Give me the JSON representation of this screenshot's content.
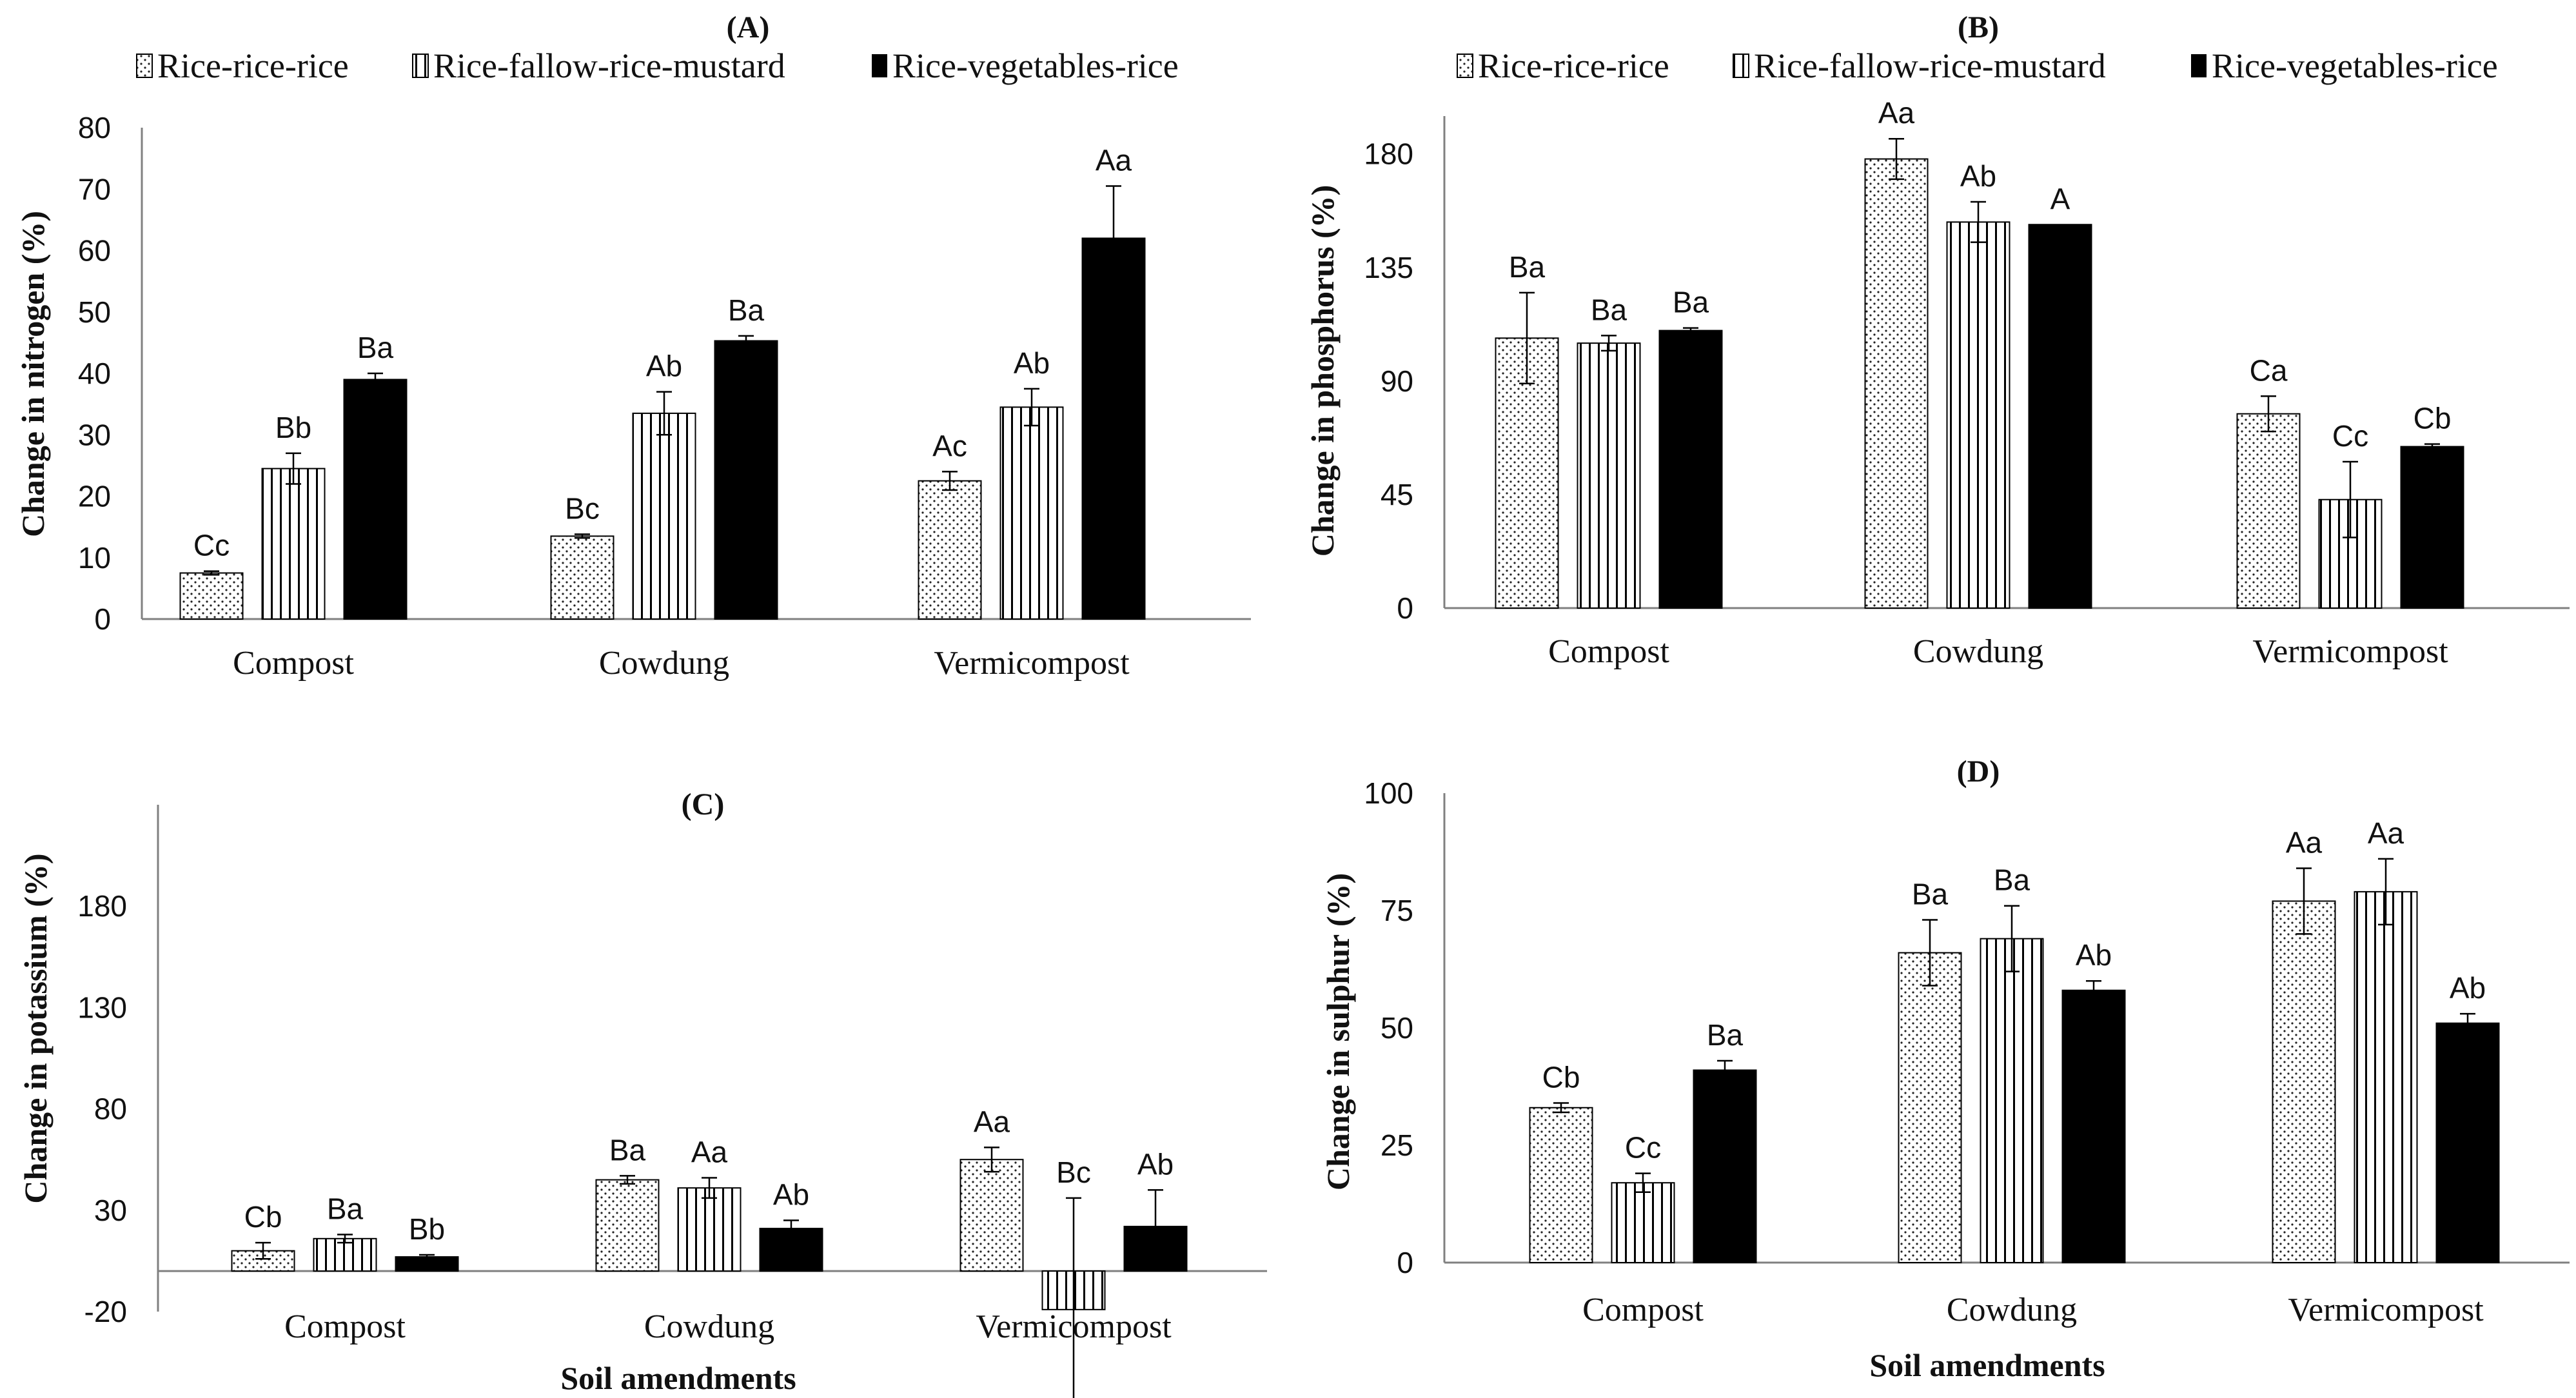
{
  "legend_labels": [
    "Rice-rice-rice",
    "Rice-fallow-rice-mustard",
    "Rice-vegetables-rice"
  ],
  "colors": {
    "axis": "#808080",
    "bar_black": "#000000",
    "ink": "#111111",
    "background": "#ffffff"
  },
  "chart_data": [
    {
      "id": "A",
      "type": "bar",
      "title": "(A)",
      "xlabel": "",
      "ylabel": "Change in nitrogen (%)",
      "ylim": [
        0,
        80
      ],
      "yticks": [
        0,
        10,
        20,
        30,
        40,
        50,
        60,
        70,
        80
      ],
      "grid": false,
      "legend": "top",
      "categories": [
        "Compost",
        "Cowdung",
        "Vermicompost"
      ],
      "series": [
        {
          "name": "Rice-rice-rice",
          "values": [
            7.5,
            13.5,
            22.5
          ],
          "errors": [
            0.3,
            0.3,
            1.5
          ],
          "labels": [
            "Cc",
            "Bc",
            "Ac"
          ]
        },
        {
          "name": "Rice-fallow-rice-mustard",
          "values": [
            24.5,
            33.5,
            34.5
          ],
          "errors": [
            2.5,
            3.5,
            3.0
          ],
          "labels": [
            "Bb",
            "Ab",
            "Ab"
          ]
        },
        {
          "name": "Rice-vegetables-rice",
          "values": [
            39,
            45.3,
            62
          ],
          "errors": [
            1.0,
            0.8,
            8.5
          ],
          "labels": [
            "Ba",
            "Ba",
            "Aa"
          ]
        }
      ]
    },
    {
      "id": "B",
      "type": "bar",
      "title": "(B)",
      "xlabel": "",
      "ylabel": "Change in phosphorus (%)",
      "ylim": [
        0,
        195
      ],
      "yticks": [
        0,
        45,
        90,
        135,
        180
      ],
      "grid": false,
      "legend": "top",
      "categories": [
        "Compost",
        "Cowdung",
        "Vermicompost"
      ],
      "series": [
        {
          "name": "Rice-rice-rice",
          "values": [
            107,
            178,
            77
          ],
          "errors": [
            18,
            8,
            7
          ],
          "labels": [
            "Ba",
            "Aa",
            "Ca"
          ]
        },
        {
          "name": "Rice-fallow-rice-mustard",
          "values": [
            105,
            153,
            43
          ],
          "errors": [
            3,
            8,
            15
          ],
          "labels": [
            "Ba",
            "Ab",
            "Cc"
          ]
        },
        {
          "name": "Rice-vegetables-rice",
          "values": [
            110,
            152,
            64
          ],
          "errors": [
            1,
            0,
            1
          ],
          "labels": [
            "Ba",
            "A",
            "Cb"
          ]
        }
      ]
    },
    {
      "id": "C",
      "type": "bar",
      "title": "(C)",
      "xlabel": "Soil amendments",
      "ylabel": "Change in potassium (%)",
      "ylim": [
        -20,
        230
      ],
      "yticks": [
        -20,
        30,
        80,
        130,
        180
      ],
      "grid": false,
      "legend": "none",
      "categories": [
        "Compost",
        "Cowdung",
        "Vermicompost"
      ],
      "series": [
        {
          "name": "Rice-rice-rice",
          "values": [
            10,
            45,
            55
          ],
          "errors": [
            4,
            2,
            6
          ],
          "labels": [
            "Cb",
            "Ba",
            "Aa"
          ]
        },
        {
          "name": "Rice-fallow-rice-mustard",
          "values": [
            16,
            41,
            -19
          ],
          "errors": [
            2,
            5,
            55
          ],
          "labels": [
            "Ba",
            "Aa",
            "Bc"
          ]
        },
        {
          "name": "Rice-vegetables-rice",
          "values": [
            7,
            21,
            22
          ],
          "errors": [
            1,
            4,
            18
          ],
          "labels": [
            "Bb",
            "Ab",
            "Ab"
          ]
        }
      ]
    },
    {
      "id": "D",
      "type": "bar",
      "title": "(D)",
      "xlabel": "Soil amendments",
      "ylabel": "Change in sulphur (%)",
      "ylim": [
        0,
        100
      ],
      "yticks": [
        0,
        25,
        50,
        75,
        100
      ],
      "grid": false,
      "legend": "none",
      "categories": [
        "Compost",
        "Cowdung",
        "Vermicompost"
      ],
      "series": [
        {
          "name": "Rice-rice-rice",
          "values": [
            33,
            66,
            77
          ],
          "errors": [
            1,
            7,
            7
          ],
          "labels": [
            "Cb",
            "Ba",
            "Aa"
          ]
        },
        {
          "name": "Rice-fallow-rice-mustard",
          "values": [
            17,
            69,
            79
          ],
          "errors": [
            2,
            7,
            7
          ],
          "labels": [
            "Cc",
            "Ba",
            "Aa"
          ]
        },
        {
          "name": "Rice-vegetables-rice",
          "values": [
            41,
            58,
            51
          ],
          "errors": [
            2,
            2,
            2
          ],
          "labels": [
            "Ba",
            "Ab",
            "Ab"
          ]
        }
      ]
    }
  ]
}
